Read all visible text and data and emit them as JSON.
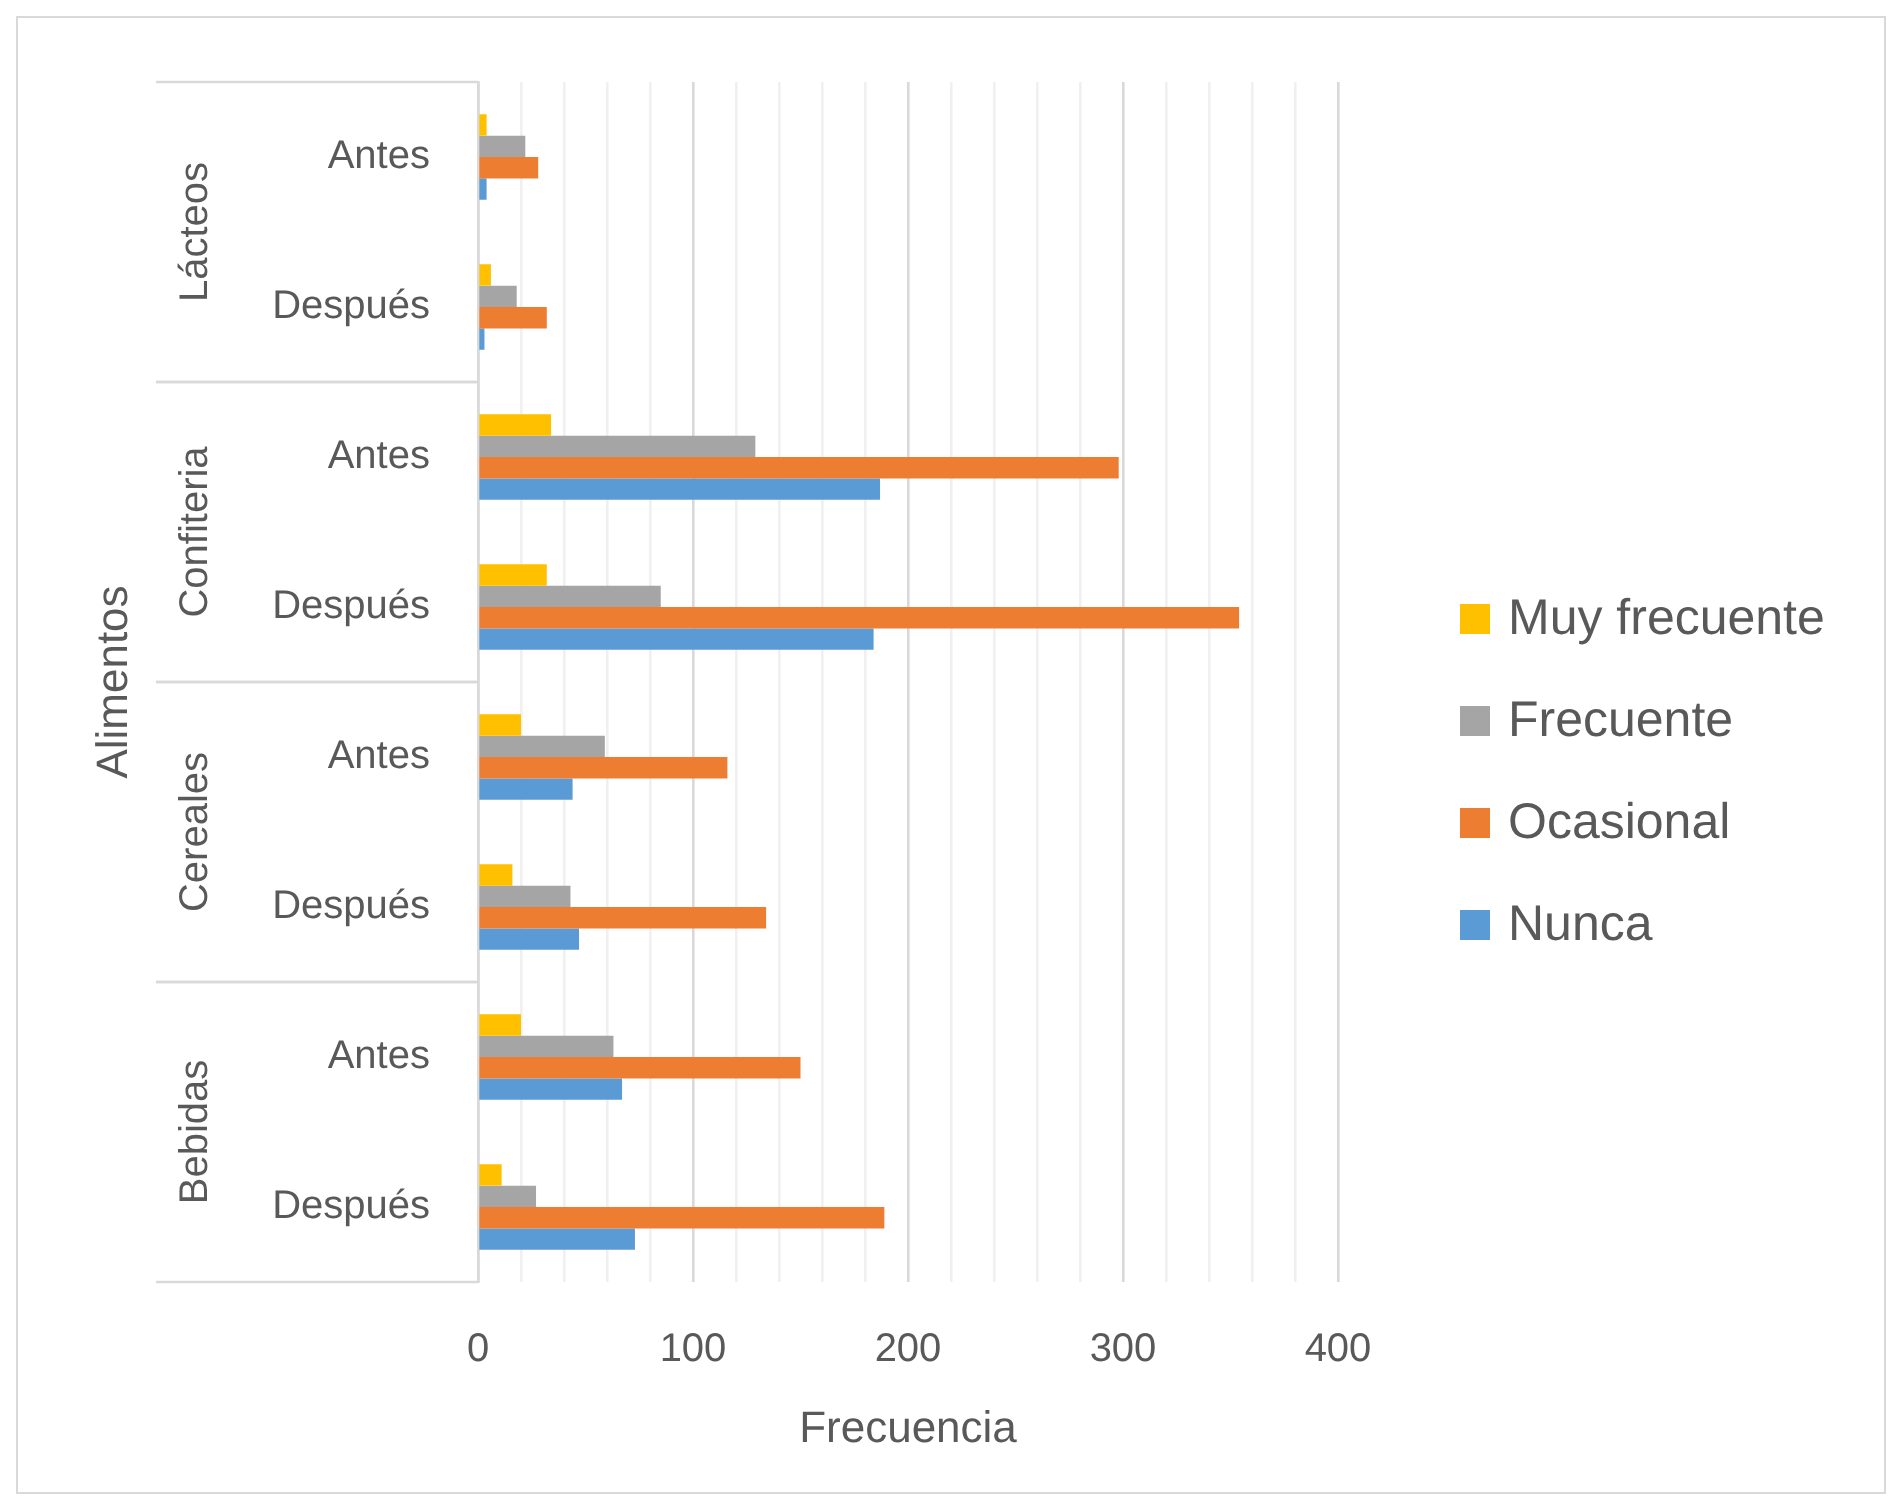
{
  "chart_data": {
    "type": "bar",
    "orientation": "horizontal",
    "xlabel": "Frecuencia",
    "ylabel": "Alimentos",
    "categories": [
      "Antes",
      "Después",
      "Antes",
      "Después",
      "Antes",
      "Después",
      "Antes",
      "Después"
    ],
    "annotations": [
      "Lácteos",
      "Confiteria",
      "Cereales",
      "Bebidas"
    ],
    "series": [
      {
        "name": "Muy frecuente",
        "color": "#ffc000",
        "values": [
          4,
          6,
          34,
          32,
          20,
          16,
          20,
          11
        ]
      },
      {
        "name": "Frecuente",
        "color": "#a5a5a5",
        "values": [
          22,
          18,
          129,
          85,
          59,
          43,
          63,
          27
        ]
      },
      {
        "name": "Ocasional",
        "color": "#ed7d31",
        "values": [
          28,
          32,
          298,
          354,
          116,
          134,
          150,
          189
        ]
      },
      {
        "name": "Nunca",
        "color": "#5b9bd5",
        "values": [
          4,
          3,
          187,
          184,
          44,
          47,
          67,
          73
        ]
      }
    ],
    "xlim": [
      0,
      400
    ],
    "xticks": [
      0,
      {
        "value": 20,
        "label": null
      },
      {
        "value": 40,
        "label": null
      },
      {
        "value": 60,
        "label": null
      },
      {
        "value": 80,
        "label": null
      },
      100,
      {
        "value": 120,
        "label": null
      },
      {
        "value": 140,
        "label": null
      },
      {
        "value": 160,
        "label": null
      },
      {
        "value": 180,
        "label": null
      },
      200,
      {
        "value": 220,
        "label": null
      },
      {
        "value": 240,
        "label": null
      },
      {
        "value": 260,
        "label": null
      },
      {
        "value": 280,
        "label": null
      },
      300,
      {
        "value": 320,
        "label": null
      },
      {
        "value": 340,
        "label": null
      },
      {
        "value": 360,
        "label": null
      },
      {
        "value": 380,
        "label": null
      },
      400
    ],
    "grid": "x",
    "legend": "right"
  }
}
